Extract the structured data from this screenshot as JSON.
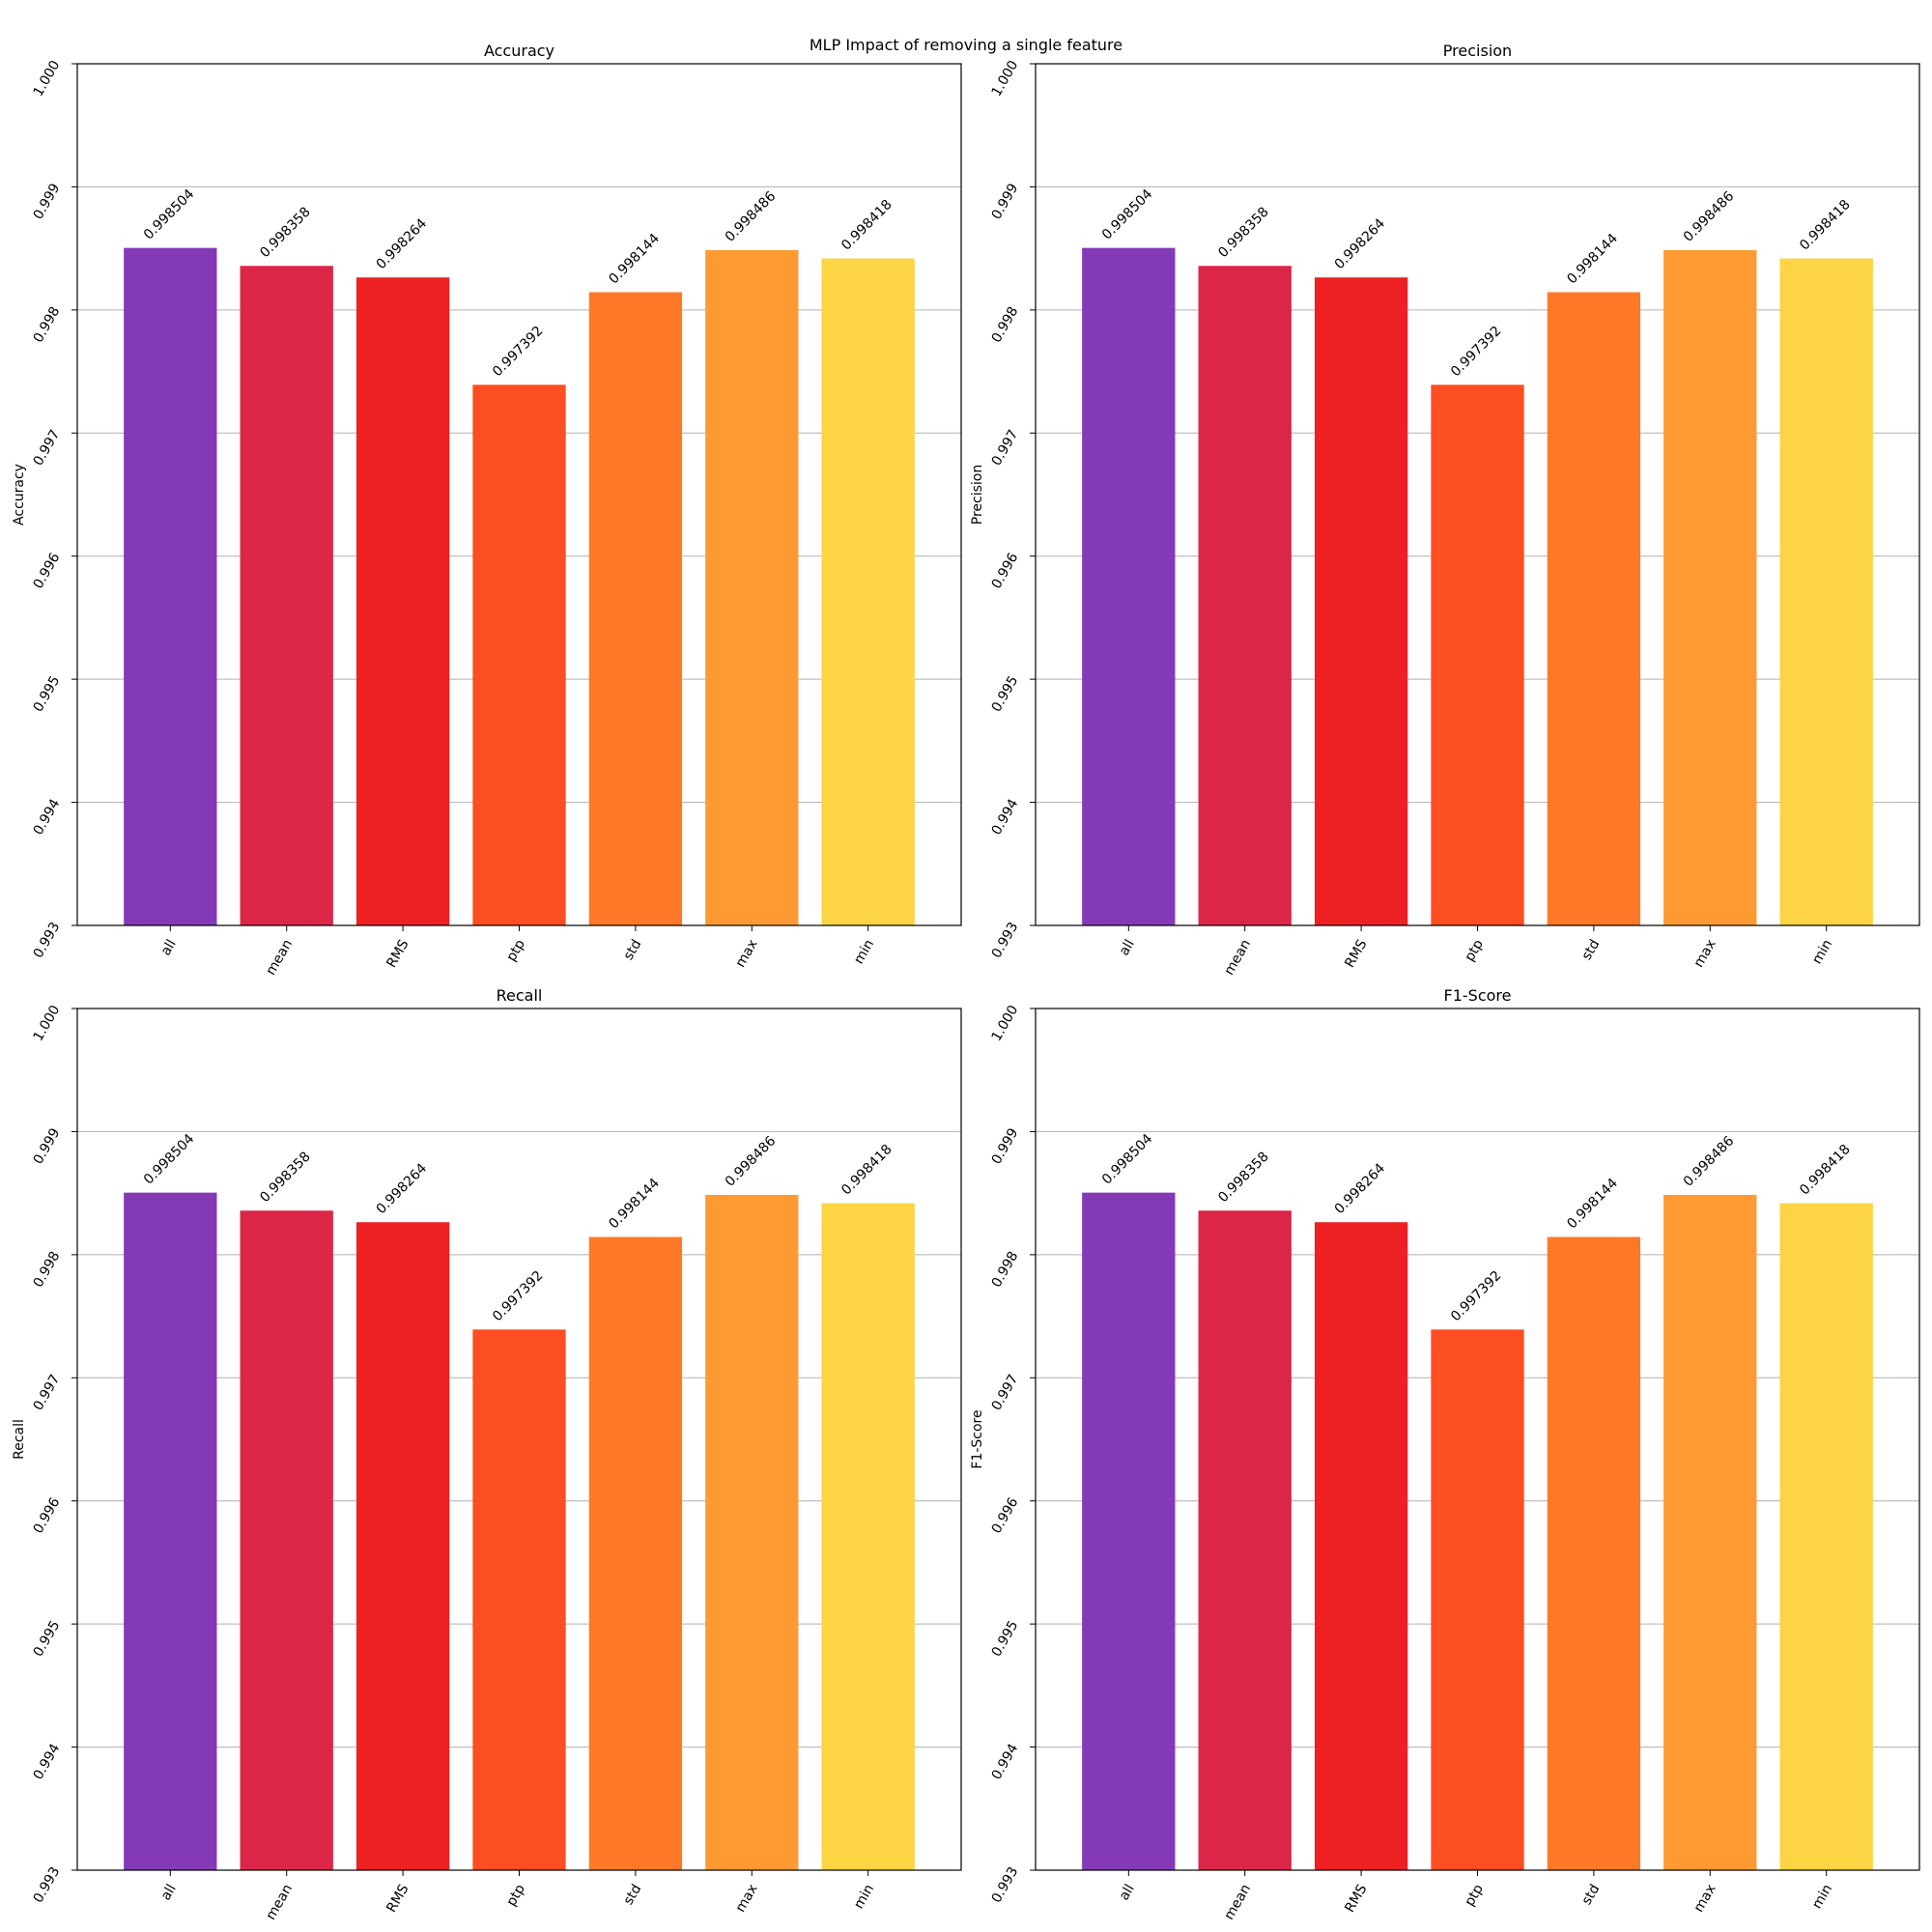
{
  "figure": {
    "title": "MLP Impact of removing a single feature"
  },
  "colors": {
    "bars": [
      "#8439b6",
      "#dc2647",
      "#ed2024",
      "#fc4e21",
      "#fe7927",
      "#fe9a31",
      "#fcd444"
    ],
    "grid": "#b0b0b0",
    "axes": "#000000"
  },
  "chart_data": [
    {
      "type": "bar",
      "title": "Accuracy",
      "xlabel": "",
      "ylabel": "Accuracy",
      "categories": [
        "all",
        "mean",
        "RMS",
        "ptp",
        "std",
        "max",
        "min"
      ],
      "values": [
        0.998504,
        0.998358,
        0.998264,
        0.997392,
        0.998144,
        0.998486,
        0.998418
      ],
      "value_labels": [
        "0.998504",
        "0.998358",
        "0.998264",
        "0.997392",
        "0.998144",
        "0.998486",
        "0.998418"
      ],
      "ylim": [
        0.993,
        1.0
      ],
      "yticks": [
        "0.993",
        "0.994",
        "0.995",
        "0.996",
        "0.997",
        "0.998",
        "0.999",
        "1.000"
      ],
      "grid": "y"
    },
    {
      "type": "bar",
      "title": "Precision",
      "xlabel": "",
      "ylabel": "Precision",
      "categories": [
        "all",
        "mean",
        "RMS",
        "ptp",
        "std",
        "max",
        "min"
      ],
      "values": [
        0.998504,
        0.998358,
        0.998264,
        0.997392,
        0.998144,
        0.998486,
        0.998418
      ],
      "value_labels": [
        "0.998504",
        "0.998358",
        "0.998264",
        "0.997392",
        "0.998144",
        "0.998486",
        "0.998418"
      ],
      "ylim": [
        0.993,
        1.0
      ],
      "yticks": [
        "0.993",
        "0.994",
        "0.995",
        "0.996",
        "0.997",
        "0.998",
        "0.999",
        "1.000"
      ],
      "grid": "y"
    },
    {
      "type": "bar",
      "title": "Recall",
      "xlabel": "",
      "ylabel": "Recall",
      "categories": [
        "all",
        "mean",
        "RMS",
        "ptp",
        "std",
        "max",
        "min"
      ],
      "values": [
        0.998504,
        0.998358,
        0.998264,
        0.997392,
        0.998144,
        0.998486,
        0.998418
      ],
      "value_labels": [
        "0.998504",
        "0.998358",
        "0.998264",
        "0.997392",
        "0.998144",
        "0.998486",
        "0.998418"
      ],
      "ylim": [
        0.993,
        1.0
      ],
      "yticks": [
        "0.993",
        "0.994",
        "0.995",
        "0.996",
        "0.997",
        "0.998",
        "0.999",
        "1.000"
      ],
      "grid": "y"
    },
    {
      "type": "bar",
      "title": "F1-Score",
      "xlabel": "",
      "ylabel": "F1-Score",
      "categories": [
        "all",
        "mean",
        "RMS",
        "ptp",
        "std",
        "max",
        "min"
      ],
      "values": [
        0.998504,
        0.998358,
        0.998264,
        0.997392,
        0.998144,
        0.998486,
        0.998418
      ],
      "value_labels": [
        "0.998504",
        "0.998358",
        "0.998264",
        "0.997392",
        "0.998144",
        "0.998486",
        "0.998418"
      ],
      "ylim": [
        0.993,
        1.0
      ],
      "yticks": [
        "0.993",
        "0.994",
        "0.995",
        "0.996",
        "0.997",
        "0.998",
        "0.999",
        "1.000"
      ],
      "grid": "y"
    }
  ]
}
